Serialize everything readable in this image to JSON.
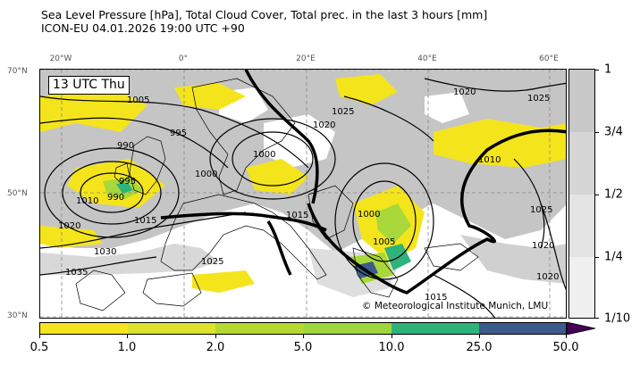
{
  "title": {
    "line1": "Sea Level Pressure [hPa], Total Cloud Cover, Total prec. in the last 3 hours [mm]",
    "line2": "ICON-EU 04.01.2026 19:00 UTC +90"
  },
  "time_label": "13 UTC Thu",
  "credit": "© Meteorological Institute Munich, LMU",
  "lat_labels": [
    "70°N",
    "50°N",
    "30°N"
  ],
  "lon_labels": [
    "20°W",
    "0°",
    "20°E",
    "40°E",
    "60°E"
  ],
  "isobar_labels": [
    "1005",
    "1025",
    "1020",
    "1020",
    "1025",
    "990",
    "995",
    "1000",
    "1000",
    "1010",
    "995",
    "990",
    "1010",
    "1020",
    "1015",
    "1015",
    "1000",
    "1005",
    "1030",
    "1035",
    "1025",
    "1025",
    "1020",
    "1020",
    "1015"
  ],
  "cloud_cover_colorbar": {
    "labels": [
      "1",
      "3/4",
      "1/2",
      "1/4",
      "1/10"
    ],
    "colors": [
      "#c8c8c8",
      "#d6d6d6",
      "#e4e4e4",
      "#f0f0f0"
    ]
  },
  "precip_colorbar": {
    "labels": [
      "0.5",
      "1.0",
      "2.0",
      "5.0",
      "10.0",
      "25.0",
      "50.0"
    ],
    "colors": [
      "#f6e51e",
      "#dde22a",
      "#b5d930",
      "#9fd63c",
      "#2db37a",
      "#3c5a8c"
    ],
    "extend_color": "#440154"
  },
  "colors": {
    "land": "#ffffff",
    "sea": "#ffffff",
    "cloud": "#c5c5c5",
    "precip_light": "#f4e41c",
    "precip_mid": "#a8d83a",
    "precip_heavy": "#2eb37c",
    "isobar": "#000000"
  }
}
